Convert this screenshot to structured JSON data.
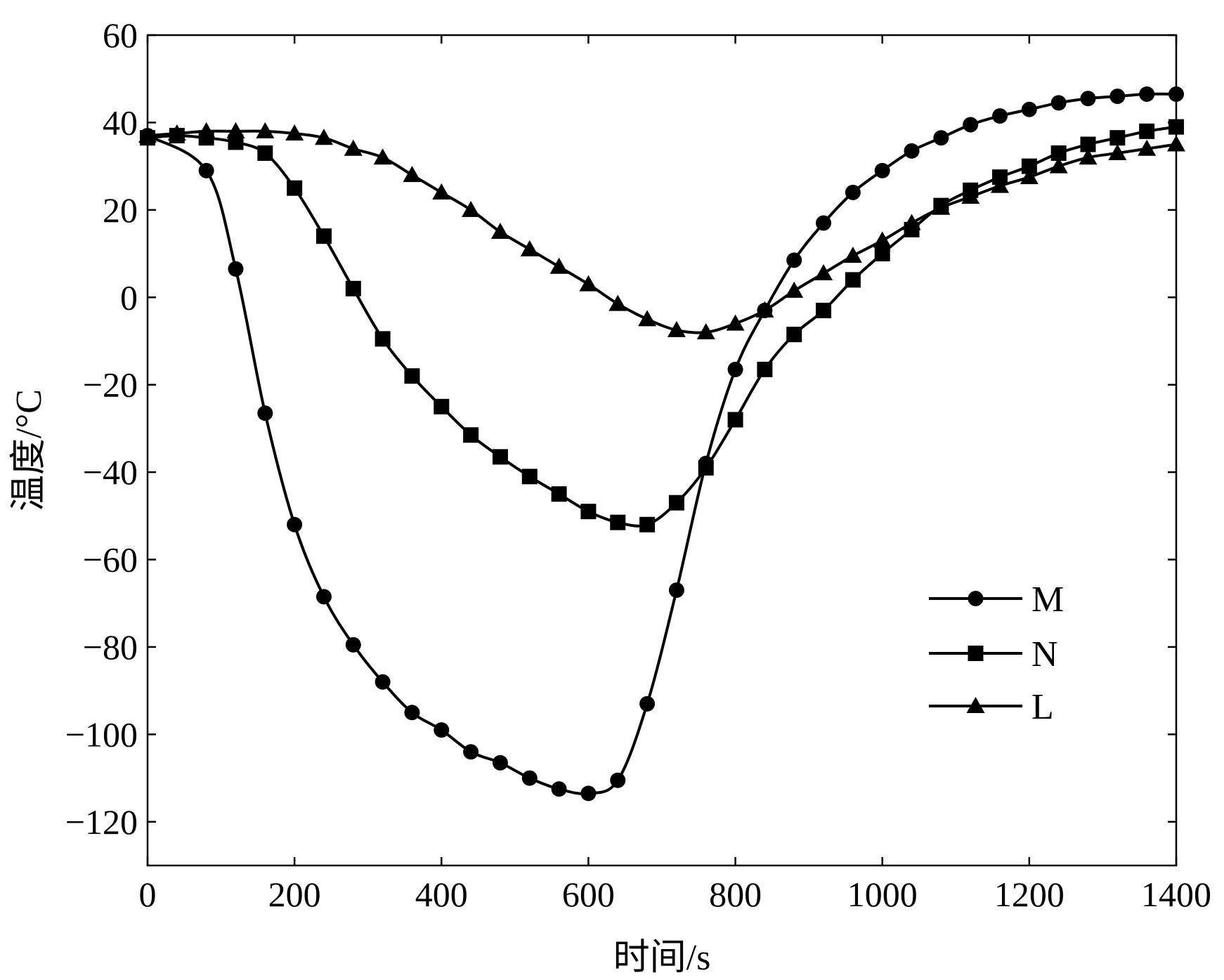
{
  "chart_data": {
    "type": "line",
    "xlabel": "时间/s",
    "ylabel": "温度/°C",
    "xlim": [
      0,
      1400
    ],
    "ylim": [
      -130,
      60
    ],
    "xticks": [
      0,
      200,
      400,
      600,
      800,
      1000,
      1200,
      1400
    ],
    "yticks": [
      60,
      40,
      20,
      0,
      -20,
      -40,
      -60,
      -80,
      -100,
      -120
    ],
    "xtick_labels": [
      "0",
      "200",
      "400",
      "600",
      "800",
      "1000",
      "1200",
      "1400"
    ],
    "ytick_labels": [
      "60",
      "40",
      "20",
      "0",
      "−20",
      "−40",
      "−60",
      "−80",
      "−100",
      "−120"
    ],
    "grid": false,
    "legend_position": "right",
    "series": [
      {
        "name": "M",
        "marker": "circle",
        "x": [
          0,
          80,
          120,
          160,
          200,
          240,
          280,
          320,
          360,
          400,
          440,
          480,
          520,
          560,
          600,
          640,
          680,
          720,
          760,
          800,
          840,
          880,
          920,
          960,
          1000,
          1040,
          1080,
          1120,
          1160,
          1200,
          1240,
          1280,
          1320,
          1360,
          1400
        ],
        "y": [
          37,
          29,
          6.5,
          -26.5,
          -52,
          -68.5,
          -79.5,
          -88,
          -95,
          -99,
          -104,
          -106.5,
          -110,
          -112.5,
          -113.5,
          -110.5,
          -93,
          -67,
          -38,
          -16.5,
          -3,
          8.5,
          17,
          24,
          29,
          33.5,
          36.5,
          39.5,
          41.5,
          43,
          44.5,
          45.5,
          46,
          46.5,
          46.5
        ]
      },
      {
        "name": "N",
        "marker": "square",
        "x": [
          0,
          40,
          80,
          120,
          160,
          200,
          240,
          280,
          320,
          360,
          400,
          440,
          480,
          520,
          560,
          600,
          640,
          680,
          720,
          760,
          800,
          840,
          880,
          920,
          960,
          1000,
          1040,
          1080,
          1120,
          1160,
          1200,
          1240,
          1280,
          1320,
          1360,
          1400
        ],
        "y": [
          36.5,
          37,
          36.5,
          35.5,
          33,
          25,
          14,
          2,
          -9.5,
          -18,
          -25,
          -31.5,
          -36.5,
          -41,
          -45,
          -49,
          -51.5,
          -52,
          -47,
          -39,
          -28,
          -16.5,
          -8.5,
          -3,
          4,
          10,
          15.5,
          21,
          24.5,
          27.5,
          30,
          33,
          35,
          36.5,
          38,
          39
        ]
      },
      {
        "name": "L",
        "marker": "triangle",
        "x": [
          0,
          40,
          80,
          120,
          160,
          200,
          240,
          280,
          320,
          360,
          400,
          440,
          480,
          520,
          560,
          600,
          640,
          680,
          720,
          760,
          800,
          840,
          880,
          920,
          960,
          1000,
          1040,
          1080,
          1120,
          1160,
          1200,
          1240,
          1280,
          1320,
          1360,
          1400
        ],
        "y": [
          37,
          37.5,
          38,
          38,
          38,
          37.5,
          36.5,
          34,
          32,
          28,
          24,
          20,
          15,
          11,
          7,
          3,
          -1.5,
          -5,
          -7.5,
          -8,
          -6,
          -3,
          1.5,
          5.5,
          9.5,
          13,
          17,
          20.5,
          23,
          25.5,
          27.5,
          30,
          32,
          33,
          34,
          35
        ]
      }
    ]
  }
}
